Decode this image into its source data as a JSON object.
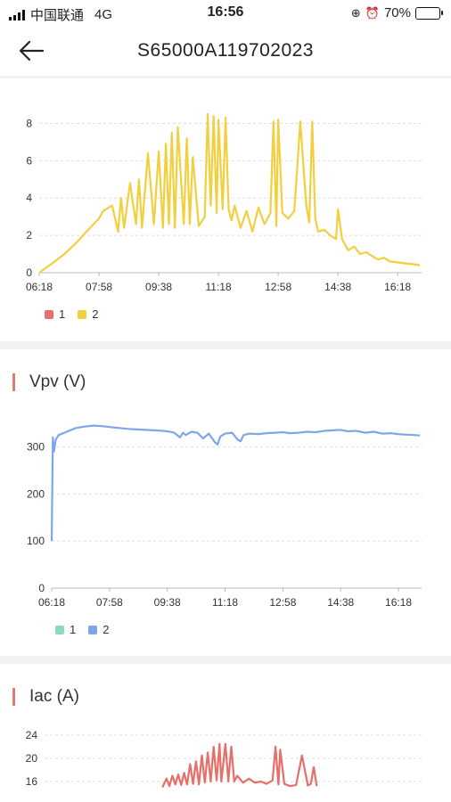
{
  "status": {
    "carrier": "中国联通",
    "network": "4G",
    "time": "16:56",
    "battery": "70%",
    "battery_level": 0.7
  },
  "header": {
    "title": "S65000A119702023"
  },
  "colors": {
    "series1_pac": "#e0736c",
    "series2_pac": "#f2cf3f",
    "series1_vpv": "#8ad9b8",
    "series2_vpv": "#7fa6e8",
    "iac": "#e86e6a",
    "accent": "#e07a6e"
  },
  "sections": [
    {
      "title": ""
    },
    {
      "title": "Vpv (V)"
    },
    {
      "title": "Iac (A)"
    }
  ],
  "chart_data": [
    {
      "type": "line",
      "xlabel": "",
      "ylabel": "",
      "x_ticks": [
        "06:18",
        "07:58",
        "09:38",
        "11:18",
        "12:58",
        "14:38",
        "16:18"
      ],
      "x_range": [
        "06:18",
        "16:58"
      ],
      "ylim": [
        0,
        8.5
      ],
      "y_ticks": [
        0,
        2,
        4,
        6,
        8
      ],
      "grid": true,
      "legend_position": "bottom-left",
      "series": [
        {
          "name": "1",
          "color": "#e0736c",
          "x": [],
          "y": []
        },
        {
          "name": "2",
          "color": "#f2cf3f",
          "x": [
            "06:18",
            "06:40",
            "07:00",
            "07:20",
            "07:40",
            "07:58",
            "08:05",
            "08:20",
            "08:30",
            "08:35",
            "08:40",
            "08:50",
            "09:00",
            "09:05",
            "09:10",
            "09:20",
            "09:30",
            "09:38",
            "09:45",
            "09:50",
            "09:55",
            "10:00",
            "10:05",
            "10:10",
            "10:20",
            "10:25",
            "10:30",
            "10:35",
            "10:45",
            "10:55",
            "11:00",
            "11:05",
            "11:10",
            "11:15",
            "11:18",
            "11:25",
            "11:30",
            "11:35",
            "11:40",
            "11:45",
            "11:55",
            "12:05",
            "12:15",
            "12:25",
            "12:35",
            "12:45",
            "12:50",
            "12:55",
            "12:58",
            "13:05",
            "13:15",
            "13:25",
            "13:35",
            "13:45",
            "13:50",
            "13:55",
            "14:00",
            "14:05",
            "14:15",
            "14:25",
            "14:35",
            "14:38",
            "14:45",
            "14:55",
            "15:05",
            "15:15",
            "15:25",
            "15:35",
            "15:45",
            "15:55",
            "16:05",
            "16:18",
            "16:30",
            "16:45",
            "16:55"
          ],
          "y": [
            0,
            0.5,
            1.0,
            1.6,
            2.3,
            2.9,
            3.3,
            3.6,
            2.2,
            4.0,
            2.4,
            4.8,
            2.6,
            5.0,
            2.4,
            6.4,
            2.6,
            6.5,
            2.4,
            6.9,
            2.6,
            7.5,
            2.4,
            7.8,
            2.6,
            7.2,
            2.6,
            6.2,
            2.5,
            3.0,
            8.5,
            3.6,
            8.4,
            3.2,
            8.2,
            3.4,
            8.3,
            3.4,
            2.8,
            3.6,
            2.4,
            3.3,
            2.2,
            3.5,
            2.6,
            3.2,
            8.1,
            2.5,
            8.2,
            3.2,
            2.9,
            3.3,
            8.1,
            3.6,
            2.7,
            8.1,
            2.9,
            2.2,
            2.3,
            2.0,
            1.8,
            3.4,
            1.8,
            1.2,
            1.4,
            1.0,
            1.1,
            0.9,
            0.7,
            0.8,
            0.6,
            0.55,
            0.5,
            0.45,
            0.4
          ]
        }
      ]
    },
    {
      "type": "line",
      "xlabel": "",
      "ylabel": "Vpv (V)",
      "x_ticks": [
        "06:18",
        "07:58",
        "09:38",
        "11:18",
        "12:58",
        "14:38",
        "16:18"
      ],
      "x_range": [
        "06:18",
        "16:58"
      ],
      "ylim": [
        0,
        350
      ],
      "y_ticks": [
        0,
        100,
        200,
        300
      ],
      "grid": true,
      "legend_position": "bottom-left",
      "series": [
        {
          "name": "1",
          "color": "#8ad9b8",
          "x": [],
          "y": []
        },
        {
          "name": "2",
          "color": "#7fa6e8",
          "x": [
            "06:18",
            "06:20",
            "06:22",
            "06:25",
            "06:30",
            "06:40",
            "06:50",
            "07:00",
            "07:15",
            "07:30",
            "07:45",
            "07:58",
            "08:15",
            "08:30",
            "08:45",
            "09:00",
            "09:15",
            "09:30",
            "09:38",
            "09:50",
            "10:00",
            "10:05",
            "10:10",
            "10:20",
            "10:30",
            "10:40",
            "10:50",
            "11:00",
            "11:05",
            "11:10",
            "11:18",
            "11:30",
            "11:40",
            "11:45",
            "11:50",
            "12:00",
            "12:15",
            "12:30",
            "12:45",
            "12:58",
            "13:10",
            "13:25",
            "13:40",
            "13:55",
            "14:10",
            "14:25",
            "14:38",
            "14:50",
            "15:05",
            "15:20",
            "15:35",
            "15:50",
            "16:05",
            "16:18",
            "16:30",
            "16:45",
            "16:55"
          ],
          "y": [
            100,
            320,
            290,
            315,
            325,
            330,
            335,
            340,
            343,
            345,
            344,
            342,
            340,
            338,
            337,
            336,
            335,
            334,
            333,
            330,
            320,
            330,
            325,
            332,
            330,
            318,
            328,
            310,
            305,
            322,
            328,
            330,
            315,
            312,
            325,
            328,
            327,
            329,
            330,
            331,
            329,
            330,
            332,
            331,
            334,
            335,
            336,
            333,
            334,
            330,
            332,
            328,
            329,
            327,
            326,
            325,
            324
          ]
        }
      ]
    },
    {
      "type": "line",
      "xlabel": "",
      "ylabel": "Iac (A)",
      "x_ticks": [],
      "ylim": [
        0,
        24
      ],
      "y_ticks": [
        16,
        20,
        24
      ],
      "grid": true,
      "series": [
        {
          "name": "",
          "color": "#e86e6a",
          "x": [
            "09:38",
            "09:45",
            "09:50",
            "09:55",
            "10:00",
            "10:05",
            "10:10",
            "10:15",
            "10:20",
            "10:25",
            "10:30",
            "10:35",
            "10:40",
            "10:45",
            "10:50",
            "10:55",
            "11:00",
            "11:05",
            "11:10",
            "11:15",
            "11:18",
            "11:25",
            "11:30",
            "11:35",
            "11:40",
            "11:45",
            "11:55",
            "12:05",
            "12:15",
            "12:25",
            "12:35",
            "12:45",
            "12:50",
            "12:55",
            "12:58",
            "13:05",
            "13:15",
            "13:25",
            "13:35",
            "13:45",
            "13:50",
            "13:55",
            "14:00"
          ],
          "y": [
            15.0,
            16.5,
            15.2,
            17.0,
            15.5,
            17.2,
            15.4,
            17.5,
            15.5,
            19.0,
            15.6,
            19.5,
            15.5,
            20.5,
            15.8,
            21.0,
            16.0,
            22.0,
            16.2,
            22.5,
            16.0,
            22.5,
            16.0,
            22.0,
            16.0,
            17.0,
            15.8,
            16.5,
            15.8,
            16.0,
            15.6,
            16.2,
            22.0,
            15.5,
            21.5,
            15.6,
            15.2,
            15.4,
            20.5,
            15.3,
            15.6,
            18.5,
            15.2
          ]
        }
      ]
    }
  ],
  "legends": [
    [
      {
        "label": "1",
        "color": "#e0736c"
      },
      {
        "label": "2",
        "color": "#f2cf3f"
      }
    ],
    [
      {
        "label": "1",
        "color": "#8ad9b8"
      },
      {
        "label": "2",
        "color": "#7fa6e8"
      }
    ]
  ]
}
